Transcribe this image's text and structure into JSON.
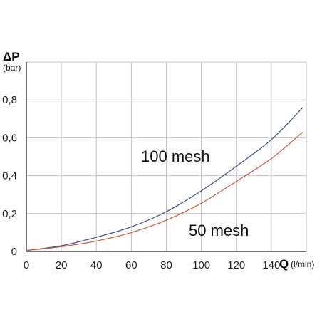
{
  "chart_data": {
    "type": "line",
    "x_label_symbol": "Q",
    "x_label_unit": "(l/min)",
    "y_label_symbol": "ΔP",
    "y_label_unit": "(bar)",
    "xlim": [
      0,
      160
    ],
    "ylim": [
      0,
      1.0
    ],
    "x_ticks": [
      0,
      20,
      40,
      60,
      80,
      100,
      120,
      140
    ],
    "x_tick_labels": [
      "0",
      "20",
      "40",
      "60",
      "80",
      "100",
      "120",
      "140"
    ],
    "y_ticks": [
      0,
      0.2,
      0.4,
      0.6,
      0.8
    ],
    "y_tick_labels": [
      "0",
      "0,2",
      "0,4",
      "0,6",
      "0,8"
    ],
    "grid": true,
    "x": [
      0,
      20,
      40,
      60,
      80,
      100,
      120,
      140,
      158
    ],
    "series": [
      {
        "name": "100 mesh",
        "color": "#3a4a8c",
        "values": [
          0.005,
          0.03,
          0.075,
          0.13,
          0.21,
          0.32,
          0.45,
          0.59,
          0.76
        ]
      },
      {
        "name": "50 mesh",
        "color": "#d05a3e",
        "values": [
          0.005,
          0.025,
          0.055,
          0.1,
          0.165,
          0.255,
          0.37,
          0.49,
          0.63
        ]
      }
    ],
    "annotations": [
      {
        "text": "100 mesh",
        "series": 0
      },
      {
        "text": "50 mesh",
        "series": 1
      }
    ]
  }
}
